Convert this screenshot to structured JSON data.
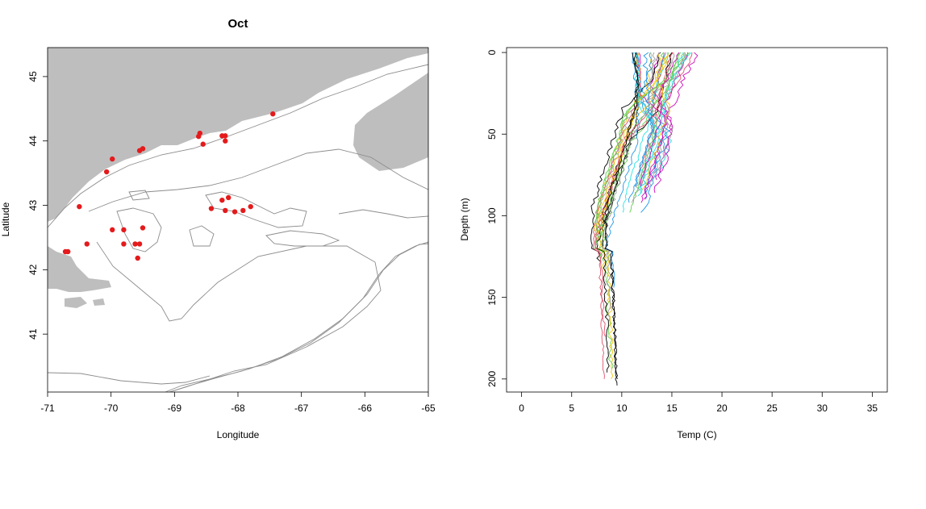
{
  "chart_data": [
    {
      "type": "scatter",
      "title": "Oct",
      "xlabel": "Longitude",
      "ylabel": "Latitude",
      "xlim": [
        -71,
        -65
      ],
      "ylim": [
        40.1,
        45.45
      ],
      "xticks": [
        -71,
        -70,
        -69,
        -68,
        -67,
        -66,
        -65
      ],
      "yticks": [
        41,
        42,
        43,
        44,
        45
      ],
      "grid": false,
      "colors": {
        "land": "#bebebe",
        "contour": "#8c8c8c",
        "points": "#e41a1c"
      },
      "series": [
        {
          "x": [
            -67.45,
            -68.6,
            -68.62,
            -68.55,
            -68.2,
            -68.25,
            -68.2,
            -69.55,
            -69.5,
            -69.98,
            -70.07,
            -70.5,
            -70.72,
            -70.68,
            -70.38,
            -69.5,
            -69.98,
            -69.8,
            -69.8,
            -69.62,
            -69.55,
            -69.58,
            -68.25,
            -68.15,
            -68.42,
            -68.2,
            -68.05,
            -67.92,
            -67.8
          ],
          "y": [
            44.42,
            44.12,
            44.07,
            43.95,
            44.08,
            44.08,
            44.0,
            43.85,
            43.88,
            43.72,
            43.52,
            42.98,
            42.28,
            42.28,
            42.4,
            42.65,
            42.62,
            42.62,
            42.4,
            42.4,
            42.4,
            42.18,
            43.08,
            43.12,
            42.95,
            42.92,
            42.9,
            42.92,
            42.98
          ]
        }
      ]
    },
    {
      "type": "line",
      "title": "",
      "xlabel": "Temp (C)",
      "ylabel": "Depth (m)",
      "xlim": [
        -1.5,
        36.5
      ],
      "ylim": [
        208,
        -3
      ],
      "xticks": [
        0,
        5,
        10,
        15,
        20,
        25,
        30,
        35
      ],
      "yticks": [
        0,
        50,
        100,
        150,
        200
      ],
      "grid": false,
      "profile_count": 40,
      "colors": [
        "#000000",
        "#df536b",
        "#61d04f",
        "#2297e6",
        "#28e2e5",
        "#cd0bbc",
        "#f5c710",
        "#9e9e9e"
      ]
    }
  ]
}
